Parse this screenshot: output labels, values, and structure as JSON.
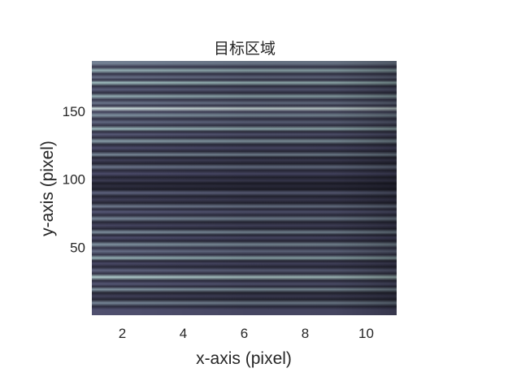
{
  "chart_data": {
    "type": "heatmap",
    "title": "目标区域",
    "xlabel": "x-axis (pixel)",
    "ylabel": "y-axis (pixel)",
    "xlim": [
      1,
      11
    ],
    "ylim": [
      0,
      187
    ],
    "xticks": [
      2,
      4,
      6,
      8,
      10
    ],
    "yticks": [
      50,
      100,
      150
    ],
    "x_tick_labels": [
      "2",
      "4",
      "6",
      "8",
      "10"
    ],
    "y_tick_labels": [
      "50",
      "100",
      "150"
    ],
    "grid": false,
    "legend": "none",
    "colormap": "bone",
    "stripe_orientation": "horizontal",
    "columns_x": [
      1,
      2,
      3,
      4,
      5,
      6,
      7,
      8,
      9,
      10,
      11
    ],
    "column_brightness": [
      1.0,
      0.98,
      0.96,
      0.93,
      0.91,
      0.88,
      0.87,
      0.87,
      0.86,
      0.78,
      0.68
    ],
    "row_y": [
      4,
      9,
      14,
      19,
      23,
      28,
      33,
      38,
      42,
      47,
      52,
      57,
      61,
      66,
      71,
      76,
      80,
      85,
      90,
      95,
      99,
      104,
      109,
      114,
      118,
      123,
      128,
      133,
      137,
      142,
      147,
      152,
      156,
      161,
      166,
      171,
      175,
      180,
      185
    ],
    "row_intensity": [
      0.32,
      0.55,
      0.22,
      0.62,
      0.35,
      0.85,
      0.4,
      0.28,
      0.72,
      0.45,
      0.6,
      0.3,
      0.58,
      0.26,
      0.55,
      0.35,
      0.5,
      0.22,
      0.4,
      0.12,
      0.2,
      0.3,
      0.48,
      0.22,
      0.56,
      0.3,
      0.64,
      0.36,
      0.75,
      0.42,
      0.6,
      0.95,
      0.48,
      0.7,
      0.38,
      0.78,
      0.45,
      0.72,
      0.52
    ]
  }
}
